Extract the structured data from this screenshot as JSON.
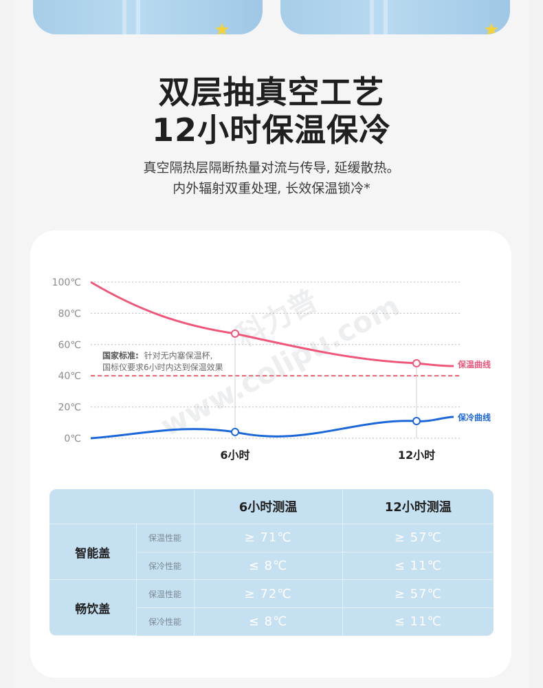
{
  "page": {
    "headline": [
      "双层抽真空工艺",
      "12小时保温保冷"
    ],
    "subline": [
      "真空隔热层隔断热量对流与传导, 延缓散热。",
      "内外辐射双重处理, 长效保温锁冷*"
    ]
  },
  "chart": {
    "watermark": "www.colipu.com",
    "watermark_cn": "科力普",
    "standard_note": {
      "title": "国家标准:",
      "line1": "针对无内塞保温杯,",
      "line2": "国标仪要求6小时内达到保温效果"
    },
    "colors": {
      "warm": "#ef5679",
      "cold": "#1b66d8",
      "threshold": "#e8303c",
      "grid": "#b9b9b9"
    }
  },
  "chart_data": {
    "type": "line",
    "x": [
      0,
      6,
      12
    ],
    "x_tick_labels": [
      "6小时",
      "12小时"
    ],
    "y_tick_labels": [
      "100℃",
      "80℃",
      "60℃",
      "40℃",
      "20℃",
      "0℃"
    ],
    "ylim": [
      0,
      100
    ],
    "series": [
      {
        "name": "保温曲线",
        "values": [
          100,
          67,
          48
        ]
      },
      {
        "name": "保冷曲线",
        "values": [
          0,
          4,
          11
        ]
      }
    ],
    "threshold": 40,
    "grid": true
  },
  "table": {
    "columns": [
      "6小时测温",
      "12小时测温"
    ],
    "groups": [
      {
        "name": "智能盖",
        "rows": [
          {
            "metric": "保温性能",
            "values": [
              "≥ 71℃",
              "≥ 57℃"
            ]
          },
          {
            "metric": "保冷性能",
            "values": [
              "≤ 8℃",
              "≤ 11℃"
            ]
          }
        ]
      },
      {
        "name": "畅饮盖",
        "rows": [
          {
            "metric": "保温性能",
            "values": [
              "≥ 72℃",
              "≥ 57℃"
            ]
          },
          {
            "metric": "保冷性能",
            "values": [
              "≤ 8℃",
              "≤ 11℃"
            ]
          }
        ]
      }
    ]
  }
}
